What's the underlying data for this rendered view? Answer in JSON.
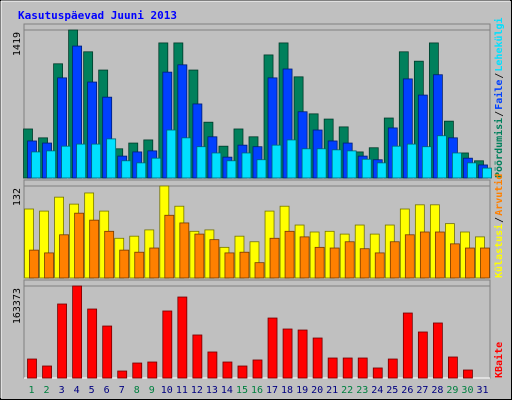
{
  "title": "Kasutuspäevad Juuni 2013",
  "categories": [
    "1",
    "2",
    "3",
    "4",
    "5",
    "6",
    "7",
    "8",
    "9",
    "10",
    "11",
    "12",
    "13",
    "14",
    "15",
    "16",
    "17",
    "18",
    "19",
    "20",
    "21",
    "22",
    "23",
    "24",
    "25",
    "26",
    "27",
    "28",
    "29",
    "30",
    "31"
  ],
  "category_colors": [
    "#008040",
    "#008040",
    "#000080",
    "#000080",
    "#000080",
    "#000080",
    "#000080",
    "#008040",
    "#008040",
    "#000080",
    "#000080",
    "#000080",
    "#000080",
    "#000080",
    "#008040",
    "#008040",
    "#000080",
    "#000080",
    "#000080",
    "#000080",
    "#000080",
    "#008040",
    "#008040",
    "#000080",
    "#000080",
    "#000080",
    "#000080",
    "#000080",
    "#008040",
    "#008040",
    "#000080"
  ],
  "legend_separator": "/",
  "chart_data": [
    {
      "type": "bar",
      "ylim": [
        0,
        1419
      ],
      "yticks": [
        1419
      ],
      "series": [
        {
          "name": "Pöördumisi",
          "color": "#00805c",
          "values": [
            470,
            385,
            1095,
            1419,
            1210,
            1035,
            280,
            335,
            365,
            1295,
            1295,
            1035,
            535,
            305,
            470,
            395,
            1180,
            1295,
            970,
            615,
            565,
            490,
            250,
            290,
            575,
            1210,
            1120,
            1295,
            545,
            240,
            165
          ]
        },
        {
          "name": "Faile",
          "color": "#0040ff",
          "values": [
            355,
            335,
            960,
            1265,
            920,
            775,
            210,
            250,
            260,
            1015,
            1085,
            710,
            395,
            200,
            315,
            300,
            960,
            1045,
            635,
            460,
            355,
            335,
            210,
            175,
            480,
            950,
            795,
            990,
            385,
            190,
            125
          ]
        },
        {
          "name": "Lehekülgi",
          "color": "#00e0ff",
          "values": [
            250,
            260,
            305,
            325,
            325,
            375,
            165,
            145,
            190,
            460,
            385,
            300,
            240,
            165,
            240,
            175,
            315,
            365,
            280,
            280,
            270,
            260,
            180,
            145,
            305,
            325,
            300,
            405,
            240,
            145,
            95
          ]
        }
      ]
    },
    {
      "type": "bar",
      "ylim": [
        0,
        132
      ],
      "yticks": [
        132
      ],
      "series": [
        {
          "name": "Külastusi",
          "color": "#ffff00",
          "values": [
            99,
            96,
            116,
            106,
            122,
            96,
            57,
            60,
            69,
            132,
            103,
            67,
            69,
            44,
            60,
            52,
            96,
            103,
            76,
            66,
            67,
            63,
            76,
            63,
            76,
            99,
            105,
            105,
            78,
            66,
            59
          ]
        },
        {
          "name": "Arvutid",
          "color": "#ff8000",
          "values": [
            40,
            36,
            62,
            93,
            83,
            67,
            40,
            37,
            43,
            90,
            79,
            63,
            55,
            36,
            37,
            22,
            57,
            67,
            59,
            44,
            43,
            52,
            42,
            36,
            52,
            62,
            66,
            66,
            49,
            43,
            43
          ]
        }
      ]
    },
    {
      "type": "bar",
      "ylim": [
        0,
        163373
      ],
      "yticks": [
        163373
      ],
      "series": [
        {
          "name": "KBaite",
          "color": "#ff0000",
          "values": [
            33700,
            21300,
            131400,
            163373,
            122500,
            92300,
            12400,
            26600,
            28400,
            119000,
            143800,
            76400,
            46200,
            28400,
            21300,
            32000,
            106500,
            87000,
            85200,
            71000,
            35500,
            35500,
            35500,
            17800,
            33700,
            115400,
            81700,
            97700,
            37300,
            14200,
            0
          ]
        }
      ]
    }
  ]
}
